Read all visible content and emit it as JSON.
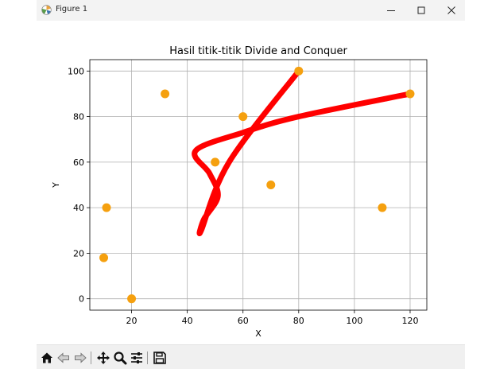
{
  "window": {
    "title": "Figure 1"
  },
  "chart_data": {
    "type": "scatter",
    "title": "Hasil titik-titik Divide and Conquer",
    "xlabel": "X",
    "ylabel": "Y",
    "xlim": [
      5,
      126
    ],
    "ylim": [
      -5,
      105
    ],
    "xticks": [
      20,
      40,
      60,
      80,
      100,
      120
    ],
    "yticks": [
      0,
      20,
      40,
      60,
      80,
      100
    ],
    "grid": true,
    "series": [
      {
        "kind": "points",
        "color": "#f5a00f",
        "x": [
          10,
          11,
          20,
          32,
          50,
          60,
          70,
          80,
          110,
          120
        ],
        "y": [
          18,
          40,
          0,
          90,
          60,
          80,
          50,
          100,
          40,
          90
        ]
      },
      {
        "kind": "curve",
        "color": "#ff0000",
        "control_points": [
          [
            80,
            100
          ],
          [
            55,
            60
          ],
          [
            45,
            30
          ],
          [
            46,
            35
          ],
          [
            51,
            45
          ],
          [
            48,
            55
          ],
          [
            43,
            65
          ],
          [
            60,
            73
          ],
          [
            80,
            80
          ],
          [
            120,
            90
          ]
        ]
      }
    ]
  }
}
